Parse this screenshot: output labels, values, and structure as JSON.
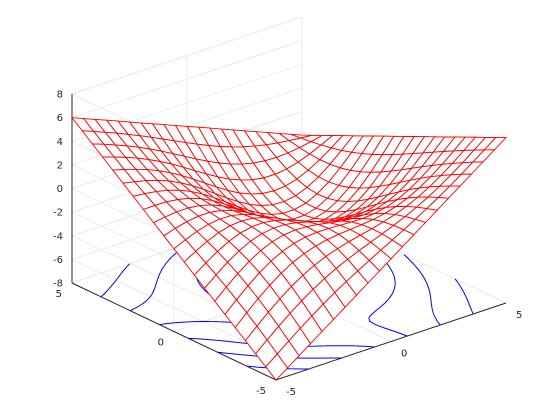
{
  "chart_data": {
    "type": "surface",
    "subtype": "mesh with contour projection on base plane (meshc)",
    "title": "",
    "xlabel": "",
    "ylabel": "",
    "zlabel": "",
    "xlim": [
      -5,
      5
    ],
    "ylim": [
      -5,
      5
    ],
    "zlim": [
      -8,
      8
    ],
    "x_ticks": [
      "-5",
      "0",
      "5"
    ],
    "y_ticks": [
      "-5",
      "0",
      "5"
    ],
    "z_ticks": [
      "-8",
      "-6",
      "-4",
      "-2",
      "0",
      "2",
      "4",
      "6",
      "8"
    ],
    "grid": true,
    "mesh_resolution": 21,
    "contour_levels": [
      -6,
      -4,
      -2,
      0,
      2,
      4,
      6
    ],
    "mesh_color": "#ff0000",
    "contour_color": "#0000ff",
    "axis_color": "#262626",
    "grid_color": "#ebebeb",
    "samples": [
      {
        "x": -5,
        "y": -5,
        "z": -8
      },
      {
        "x": 5,
        "y": -5,
        "z": 6
      },
      {
        "x": 5,
        "y": 5,
        "z": -2
      },
      {
        "x": -5,
        "y": 5,
        "z": 6
      },
      {
        "x": 0,
        "y": 0,
        "z": -2
      }
    ]
  }
}
